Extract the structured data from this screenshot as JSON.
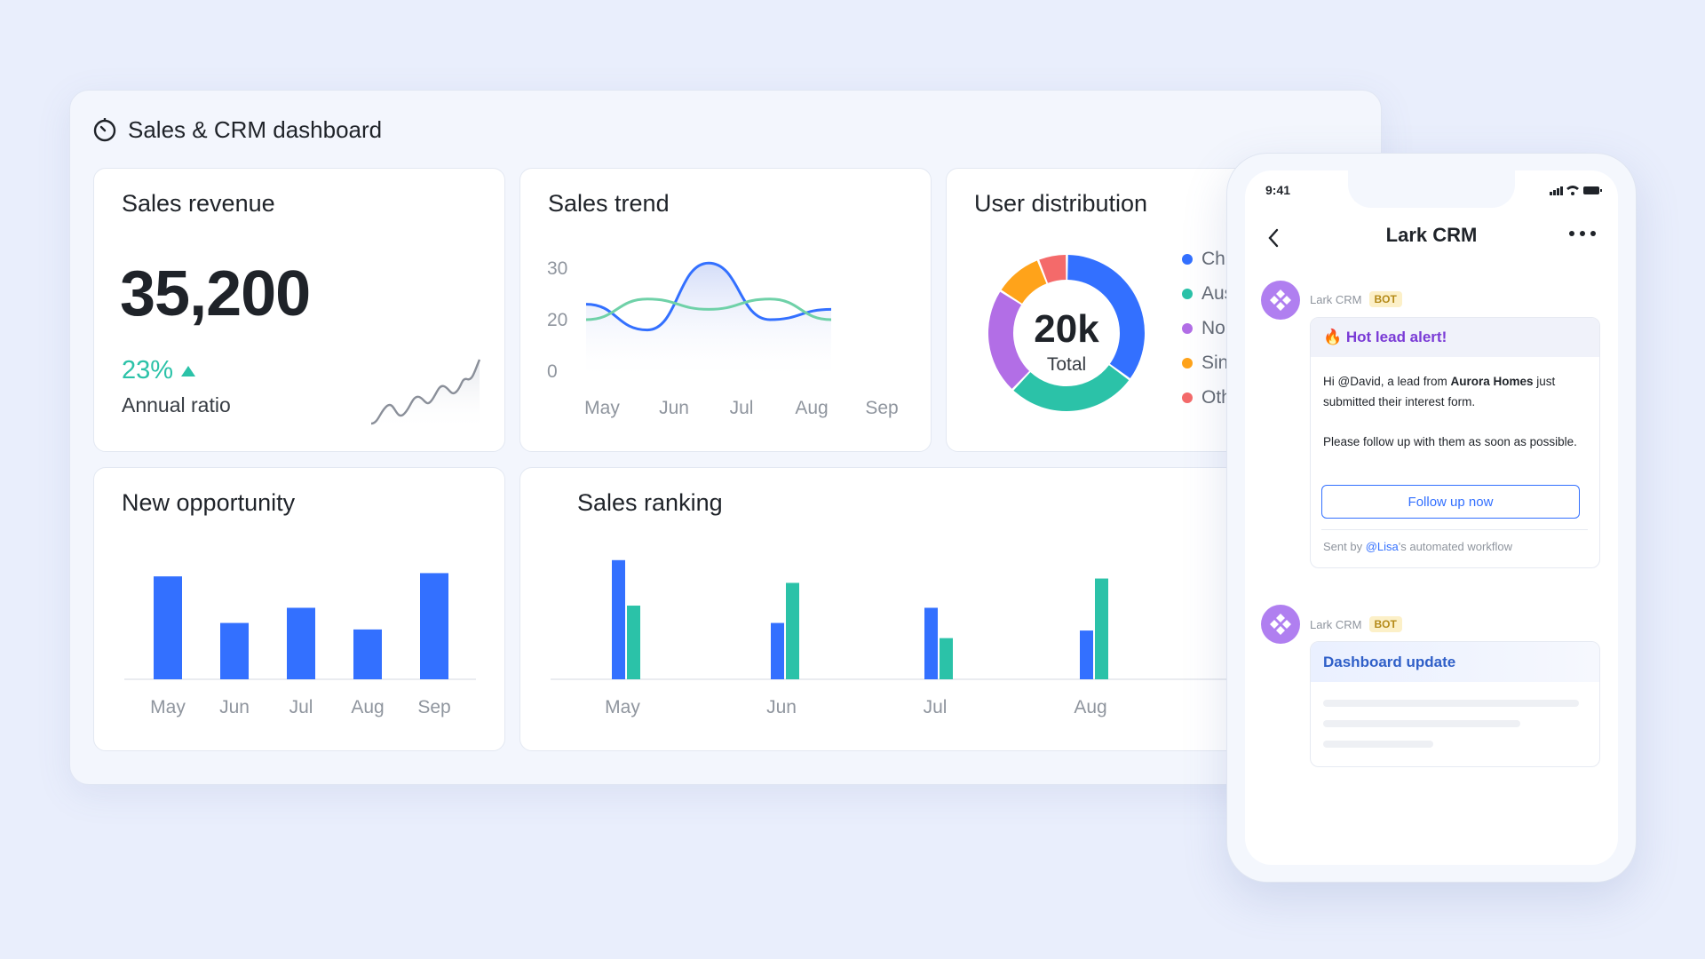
{
  "dashboard": {
    "title": "Sales & CRM dashboard",
    "icon": "timer-icon"
  },
  "sales_revenue": {
    "title": "Sales revenue",
    "value": "35,200",
    "change": "23%",
    "change_icon": "triangle-up-icon",
    "change_label": "Annual ratio",
    "accent_color": "#2bc2a8"
  },
  "sales_trend": {
    "title": "Sales trend"
  },
  "user_distribution": {
    "title": "User distribution",
    "center_value": "20k",
    "center_label": "Total",
    "legend": [
      {
        "label": "Chi",
        "color": "#3370ff"
      },
      {
        "label": "Aus",
        "color": "#2bc2a8"
      },
      {
        "label": "Nor",
        "color": "#b26ee6"
      },
      {
        "label": "Sin",
        "color": "#ffa31a"
      },
      {
        "label": "Oth",
        "color": "#f46a6a"
      }
    ]
  },
  "new_opportunity": {
    "title": "New opportunity"
  },
  "sales_ranking": {
    "title": "Sales ranking"
  },
  "chart_data": [
    {
      "id": "sales_trend",
      "type": "line",
      "x": [
        "May",
        "Jun",
        "Jul",
        "Aug",
        "Sep"
      ],
      "yticks": [
        "30",
        "20",
        "0"
      ],
      "series": [
        {
          "values": [
            23,
            18,
            31,
            20,
            22
          ],
          "color": "#3370ff"
        },
        {
          "values": [
            20,
            24,
            22,
            24,
            20
          ],
          "color": "#6fd1a8"
        }
      ]
    },
    {
      "id": "user_distribution",
      "type": "pie",
      "values": [
        35,
        27,
        22,
        10,
        6
      ],
      "labels": [
        "Chi",
        "Aus",
        "Nor",
        "Sin",
        "Oth"
      ],
      "colors": [
        "#3370ff",
        "#2bc2a8",
        "#b26ee6",
        "#ffa31a",
        "#f46a6a"
      ]
    },
    {
      "id": "new_opportunity",
      "type": "bar",
      "categories": [
        "May",
        "Jun",
        "Jul",
        "Aug",
        "Sep"
      ],
      "values": [
        95,
        52,
        66,
        46,
        98
      ],
      "color": "#3370ff"
    },
    {
      "id": "sales_ranking",
      "type": "bar",
      "categories": [
        "May",
        "Jun",
        "Jul",
        "Aug"
      ],
      "series": [
        {
          "values": [
            110,
            52,
            66,
            45
          ],
          "color": "#3370ff"
        },
        {
          "values": [
            68,
            89,
            38,
            93
          ],
          "color": "#2bc2a8"
        }
      ]
    }
  ],
  "phone": {
    "time": "9:41",
    "app_title": "Lark CRM",
    "messages": [
      {
        "sender": "Lark CRM",
        "tag": "BOT",
        "card_title": "🔥 Hot lead alert!",
        "body_prefix": "Hi @David, a lead from ",
        "body_bold": "Aurora Homes",
        "body_suffix": " just submitted their interest form.",
        "body2": "Please follow up with them as soon as possible.",
        "button": "Follow up now",
        "footer_prefix": "Sent by ",
        "footer_mention": "@Lisa",
        "footer_suffix": "'s automated workflow"
      },
      {
        "sender": "Lark CRM",
        "tag": "BOT",
        "card_title": "Dashboard update"
      }
    ]
  }
}
